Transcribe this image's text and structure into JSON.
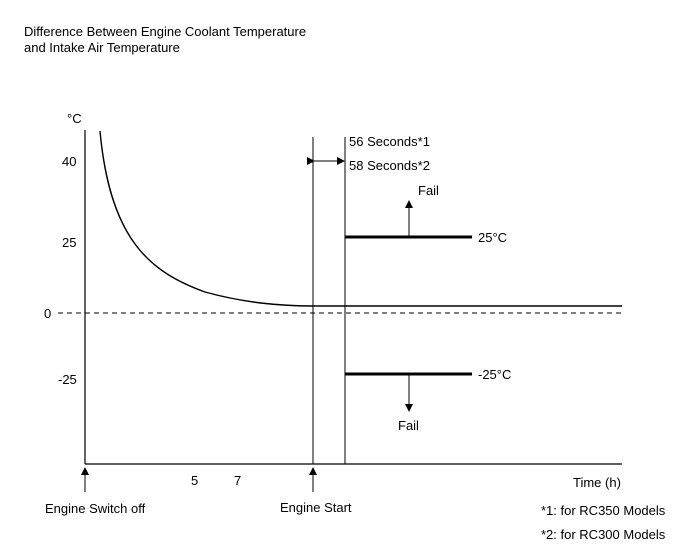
{
  "title": {
    "line1": "Difference Between Engine Coolant Temperature",
    "line2": "and Intake Air Temperature"
  },
  "axis": {
    "y_unit": "°C",
    "y_ticks": [
      "40",
      "25",
      "0",
      "-25"
    ],
    "x_label": "Time (h)",
    "x_ticks": [
      "5",
      "7"
    ]
  },
  "events": {
    "engine_switch_off": "Engine Switch off",
    "engine_start": "Engine Start"
  },
  "interval": {
    "line1": "56 Seconds*1",
    "line2": "58 Seconds*2"
  },
  "thresholds": {
    "upper_label": "25°C",
    "lower_label": "-25°C",
    "upper_fail": "Fail",
    "lower_fail": "Fail"
  },
  "footnotes": {
    "note1": "*1: for RC350 Models",
    "note2": "*2: for RC300 Models"
  }
}
